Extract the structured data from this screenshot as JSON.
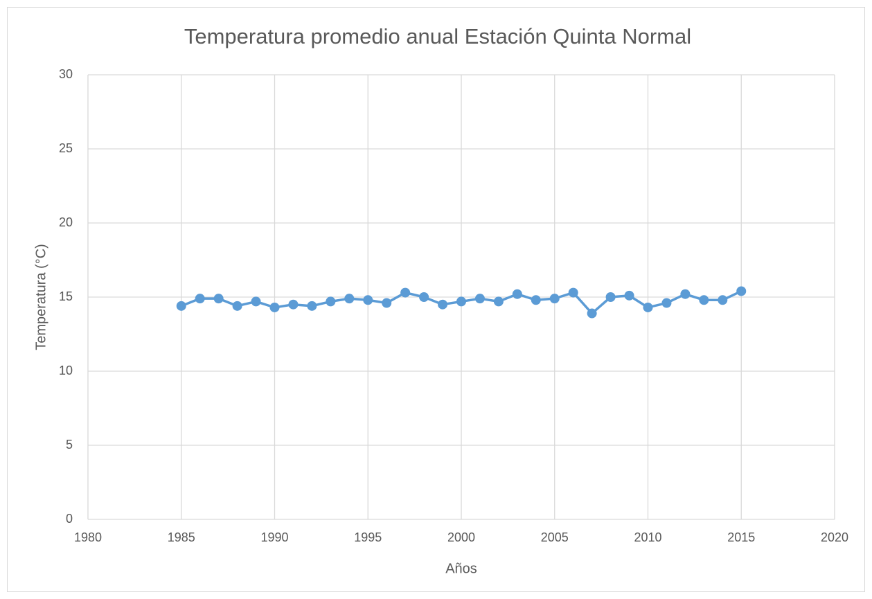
{
  "chart_data": {
    "type": "line",
    "title": "Temperatura promedio anual Estación Quinta Normal",
    "x_label": "Años",
    "y_label": "Temperatura (°C)",
    "x": [
      1985,
      1986,
      1987,
      1988,
      1989,
      1990,
      1991,
      1992,
      1993,
      1994,
      1995,
      1996,
      1997,
      1998,
      1999,
      2000,
      2001,
      2002,
      2003,
      2004,
      2005,
      2006,
      2007,
      2008,
      2009,
      2010,
      2011,
      2012,
      2013,
      2014,
      2015
    ],
    "series": [
      {
        "name": "Temperatura",
        "color": "#5b9bd5",
        "values": [
          14.4,
          14.9,
          14.9,
          14.4,
          14.7,
          14.3,
          14.5,
          14.4,
          14.7,
          14.9,
          14.8,
          14.6,
          15.3,
          15.0,
          14.5,
          14.7,
          14.9,
          14.7,
          15.2,
          14.8,
          14.9,
          15.3,
          13.9,
          15.0,
          15.1,
          14.3,
          14.6,
          15.2,
          14.8,
          14.8,
          15.4
        ]
      }
    ],
    "xlim": [
      1980,
      2020
    ],
    "xticks": [
      1980,
      1985,
      1990,
      1995,
      2000,
      2005,
      2010,
      2015,
      2020
    ],
    "ylim": [
      0,
      30
    ],
    "yticks": [
      0,
      5,
      10,
      15,
      20,
      25,
      30
    ],
    "grid": true
  }
}
